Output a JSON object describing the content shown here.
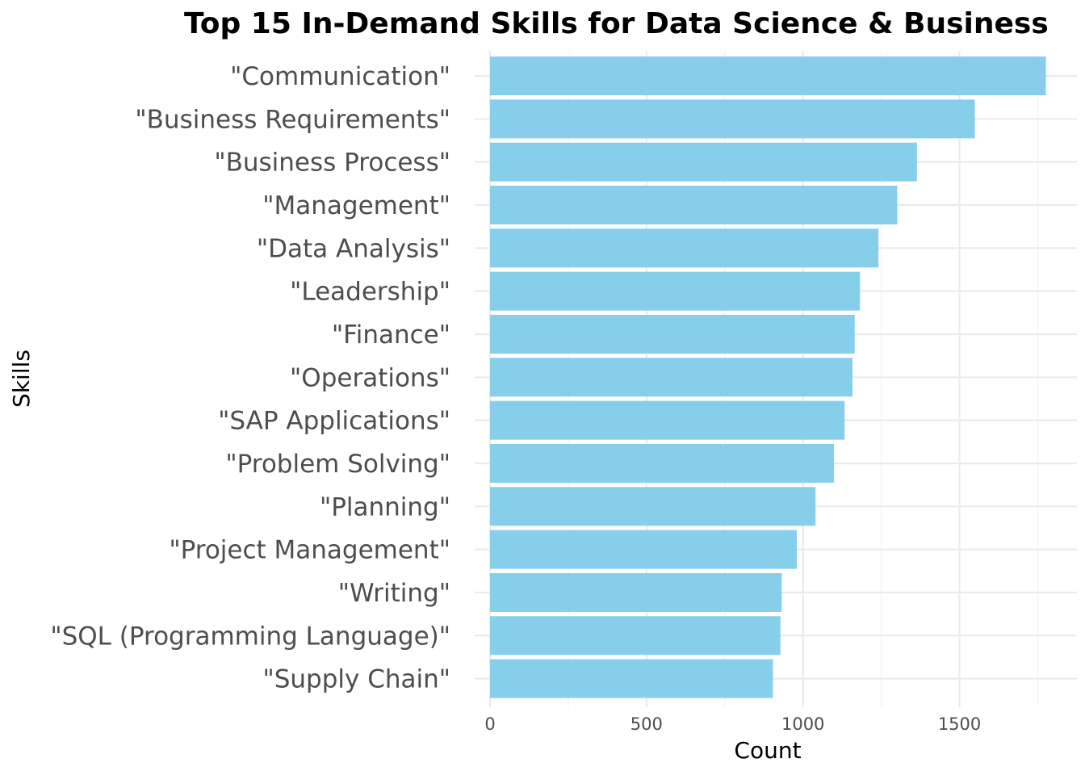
{
  "chart_data": {
    "type": "bar",
    "orientation": "horizontal",
    "title": "Top 15 In-Demand Skills for Data Science & Business",
    "xlabel": "Count",
    "ylabel": "Skills",
    "xlim": [
      0,
      1800
    ],
    "xticks": [
      0,
      500,
      1000,
      1500
    ],
    "grid": true,
    "bar_color": "#87CEEB",
    "categories": [
      "\"Communication\"",
      "\"Business Requirements\"",
      "\"Business Process\"",
      "\"Management\"",
      "\"Data Analysis\"",
      "\"Leadership\"",
      "\"Finance\"",
      "\"Operations\"",
      "\"SAP Applications\"",
      "\"Problem Solving\"",
      "\"Planning\"",
      "\"Project Management\"",
      "\"Writing\"",
      "\"SQL (Programming Language)\"",
      "\"Supply Chain\""
    ],
    "values": [
      1776,
      1549,
      1364,
      1301,
      1241,
      1182,
      1165,
      1158,
      1133,
      1099,
      1040,
      980,
      932,
      928,
      904
    ]
  }
}
